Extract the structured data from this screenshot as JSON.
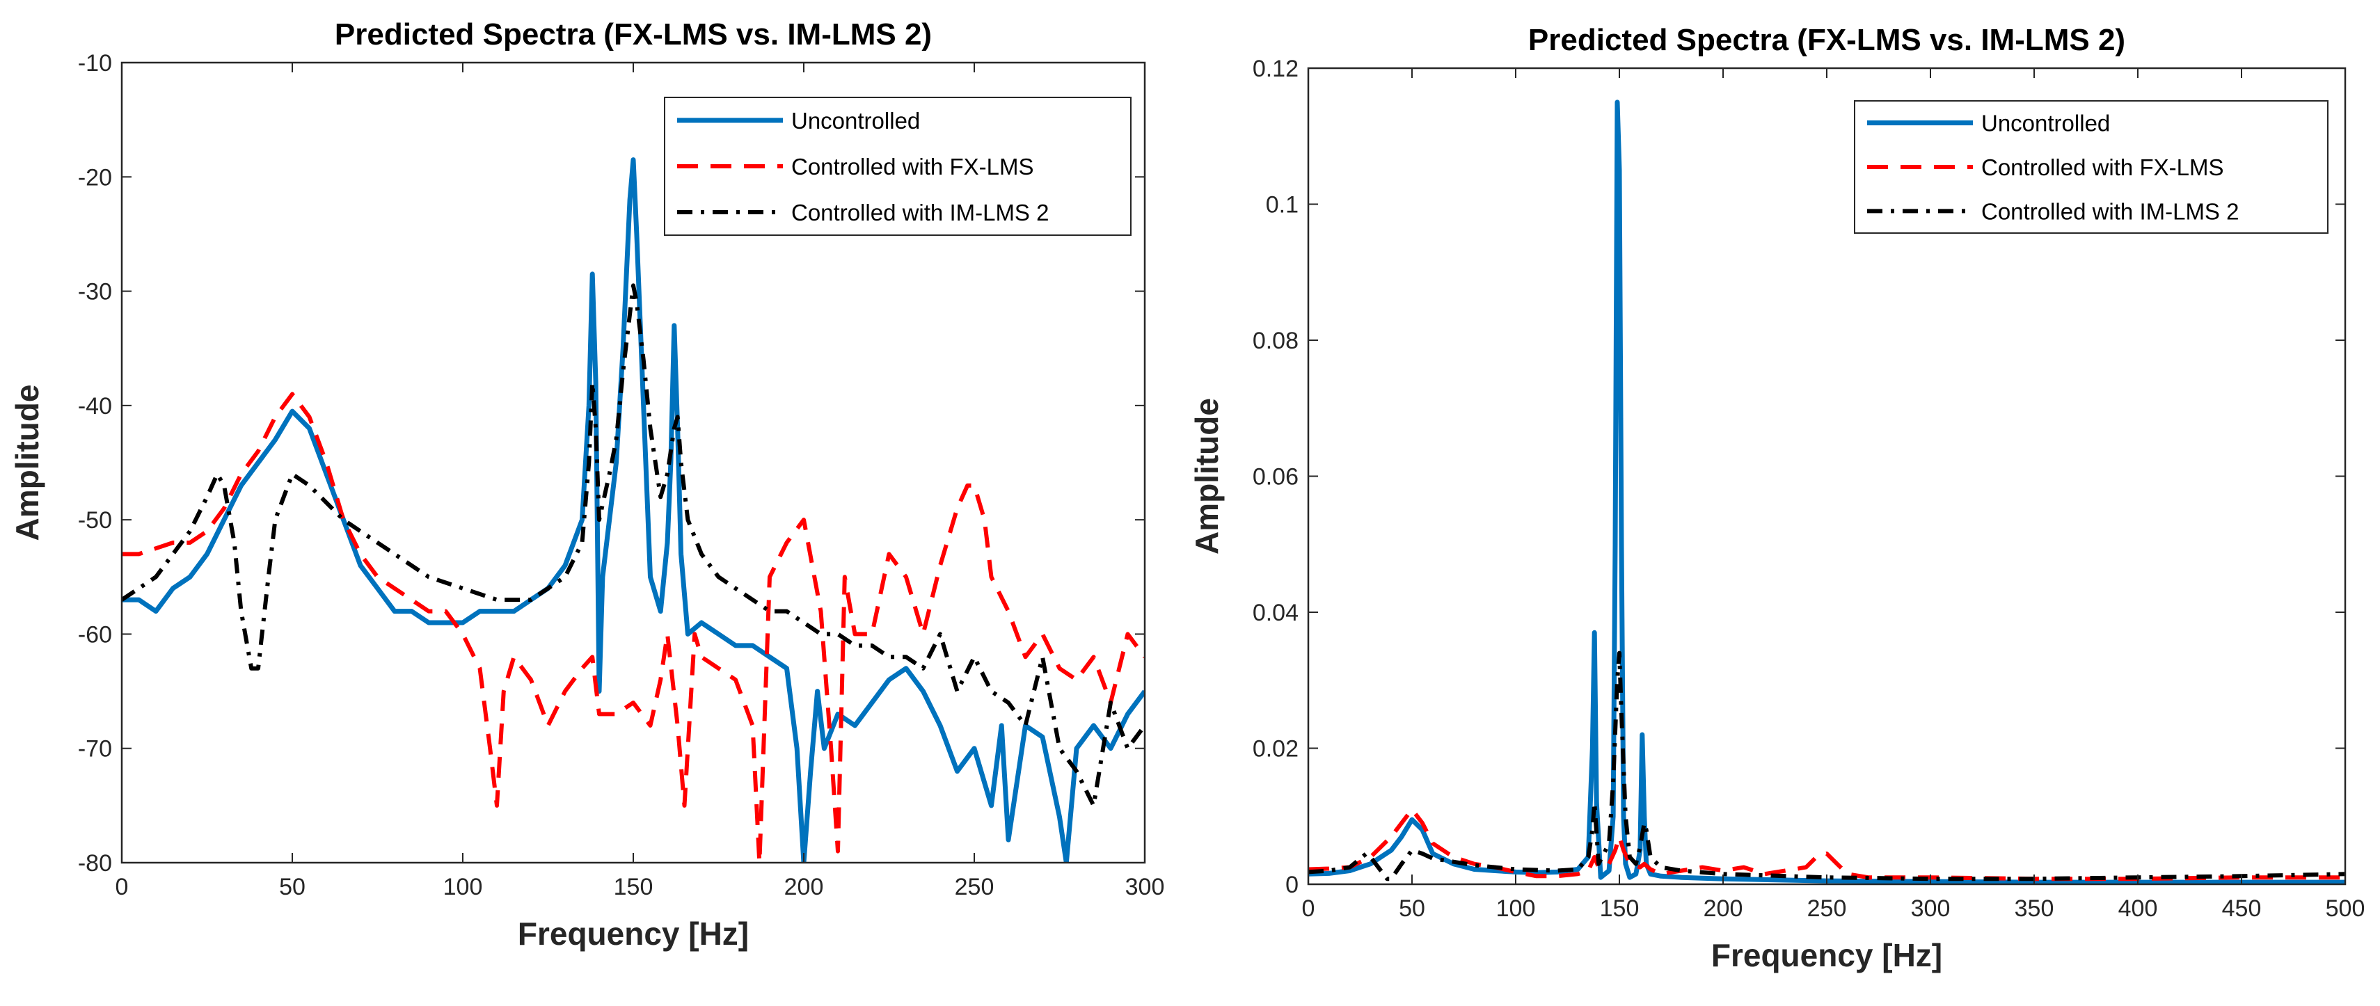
{
  "chart_data": [
    {
      "type": "line",
      "title": "Predicted Spectra (FX-LMS vs. IM-LMS 2)",
      "xlabel": "Frequency [Hz]",
      "ylabel": "Amplitude",
      "xlim": [
        0,
        300
      ],
      "ylim": [
        -80,
        -10
      ],
      "xticks": [
        "0",
        "50",
        "100",
        "150",
        "200",
        "250",
        "300"
      ],
      "yticks": [
        "-80",
        "-70",
        "-60",
        "-50",
        "-40",
        "-30",
        "-20",
        "-10"
      ],
      "legend": "top-right",
      "series": [
        {
          "name": "Uncontrolled",
          "style": "solid",
          "color": "#0072BD",
          "x": [
            0,
            5,
            10,
            15,
            20,
            25,
            30,
            35,
            40,
            45,
            50,
            55,
            60,
            65,
            70,
            75,
            80,
            85,
            90,
            95,
            100,
            105,
            110,
            115,
            120,
            125,
            130,
            135,
            137,
            138,
            139,
            140,
            141,
            143,
            145,
            147,
            149,
            150,
            151,
            153,
            155,
            158,
            160,
            161,
            162,
            163,
            164,
            166,
            170,
            175,
            180,
            185,
            190,
            195,
            198,
            200,
            202,
            204,
            206,
            210,
            215,
            220,
            225,
            230,
            235,
            240,
            245,
            250,
            255,
            258,
            260,
            265,
            270,
            275,
            277,
            280,
            285,
            290,
            295,
            300
          ],
          "values": [
            -57,
            -57,
            -58,
            -56,
            -55,
            -53,
            -50,
            -47,
            -45,
            -43,
            -40.5,
            -42,
            -46,
            -50,
            -54,
            -56,
            -58,
            -58,
            -59,
            -59,
            -59,
            -58,
            -58,
            -58,
            -57,
            -56,
            -54,
            -50,
            -40,
            -28.5,
            -38,
            -65,
            -55,
            -50,
            -45,
            -35,
            -22,
            -18.5,
            -25,
            -40,
            -55,
            -58,
            -52,
            -45,
            -33,
            -42,
            -53,
            -60,
            -59,
            -60,
            -61,
            -61,
            -62,
            -63,
            -70,
            -80,
            -72,
            -65,
            -70,
            -67,
            -68,
            -66,
            -64,
            -63,
            -65,
            -68,
            -72,
            -70,
            -75,
            -68,
            -78,
            -68,
            -69,
            -76,
            -80,
            -70,
            -68,
            -70,
            -67,
            -65
          ]
        },
        {
          "name": "Controlled with FX-LMS",
          "style": "dashed",
          "color": "#FF0000",
          "x": [
            0,
            5,
            10,
            15,
            20,
            25,
            30,
            35,
            40,
            45,
            50,
            55,
            60,
            65,
            70,
            75,
            80,
            85,
            90,
            95,
            100,
            105,
            108,
            110,
            112,
            115,
            120,
            125,
            130,
            135,
            138,
            140,
            145,
            150,
            155,
            158,
            160,
            163,
            165,
            168,
            170,
            175,
            180,
            185,
            187,
            190,
            195,
            200,
            205,
            208,
            210,
            212,
            215,
            220,
            225,
            230,
            235,
            240,
            245,
            248,
            250,
            253,
            255,
            260,
            265,
            270,
            275,
            280,
            285,
            290,
            295,
            300
          ],
          "values": [
            -53,
            -53,
            -52.5,
            -52,
            -52,
            -51,
            -49,
            -46,
            -44,
            -41,
            -39,
            -41,
            -45,
            -50,
            -53,
            -55,
            -56,
            -57,
            -58,
            -58,
            -60,
            -63,
            -70,
            -75,
            -65,
            -62,
            -64,
            -68,
            -65,
            -63,
            -62,
            -67,
            -67,
            -66,
            -68,
            -64,
            -60,
            -68,
            -75,
            -60,
            -62,
            -63,
            -64,
            -68,
            -80,
            -55,
            -52,
            -50,
            -58,
            -70,
            -79,
            -55,
            -60,
            -60,
            -53,
            -55,
            -60,
            -54,
            -49,
            -47,
            -47,
            -50,
            -55,
            -58,
            -62,
            -60,
            -63,
            -64,
            -62,
            -66,
            -60,
            -62
          ]
        },
        {
          "name": "Controlled with IM-LMS 2",
          "style": "dashdot",
          "color": "#000000",
          "x": [
            0,
            5,
            10,
            15,
            20,
            25,
            28,
            30,
            33,
            35,
            38,
            40,
            43,
            45,
            50,
            55,
            60,
            65,
            70,
            75,
            80,
            85,
            90,
            95,
            100,
            105,
            110,
            115,
            120,
            125,
            130,
            135,
            137,
            138,
            139,
            140,
            143,
            145,
            147,
            149,
            150,
            151,
            153,
            155,
            158,
            160,
            162,
            163,
            164,
            166,
            170,
            175,
            180,
            185,
            190,
            195,
            200,
            205,
            210,
            215,
            220,
            225,
            230,
            235,
            240,
            245,
            250,
            255,
            260,
            265,
            270,
            275,
            280,
            285,
            290,
            295,
            300
          ],
          "values": [
            -57,
            -56,
            -55,
            -53,
            -51,
            -48,
            -46,
            -47,
            -52,
            -58,
            -63,
            -63,
            -55,
            -50,
            -46,
            -47,
            -48.5,
            -50,
            -51,
            -52,
            -53,
            -54,
            -55,
            -55.5,
            -56,
            -56.5,
            -57,
            -57,
            -57,
            -56,
            -55,
            -52,
            -45,
            -38,
            -42,
            -50,
            -46,
            -43,
            -37,
            -32,
            -29.5,
            -31,
            -36,
            -42,
            -48,
            -46,
            -42,
            -41,
            -45,
            -50,
            -53,
            -55,
            -56,
            -57,
            -58,
            -58,
            -59,
            -60,
            -60,
            -61,
            -61,
            -62,
            -62,
            -63,
            -60,
            -65,
            -62,
            -65,
            -66,
            -68,
            -62,
            -70,
            -72,
            -75,
            -66,
            -70,
            -68
          ]
        }
      ]
    },
    {
      "type": "line",
      "title": "Predicted Spectra (FX-LMS vs. IM-LMS 2)",
      "xlabel": "Frequency [Hz]",
      "ylabel": "Amplitude",
      "xlim": [
        0,
        500
      ],
      "ylim": [
        0,
        0.12
      ],
      "xticks": [
        "0",
        "50",
        "100",
        "150",
        "200",
        "250",
        "300",
        "350",
        "400",
        "450",
        "500"
      ],
      "yticks": [
        "0",
        "0.02",
        "0.04",
        "0.06",
        "0.08",
        "0.1",
        "0.12"
      ],
      "legend": "top-right",
      "series": [
        {
          "name": "Uncontrolled",
          "style": "solid",
          "color": "#0072BD",
          "x": [
            0,
            10,
            20,
            30,
            40,
            45,
            50,
            55,
            60,
            70,
            80,
            90,
            100,
            110,
            120,
            130,
            135,
            137,
            138,
            139,
            141,
            145,
            147,
            148,
            149,
            150,
            151,
            152,
            153,
            155,
            158,
            160,
            161,
            162,
            163,
            165,
            170,
            180,
            200,
            250,
            300,
            350,
            400,
            450,
            500
          ],
          "values": [
            0.0015,
            0.0016,
            0.002,
            0.003,
            0.005,
            0.007,
            0.0095,
            0.008,
            0.0045,
            0.003,
            0.0022,
            0.002,
            0.0018,
            0.0017,
            0.0018,
            0.0022,
            0.004,
            0.02,
            0.037,
            0.012,
            0.001,
            0.002,
            0.01,
            0.05,
            0.115,
            0.105,
            0.05,
            0.01,
            0.003,
            0.001,
            0.0015,
            0.005,
            0.022,
            0.01,
            0.003,
            0.0015,
            0.0012,
            0.001,
            0.0008,
            0.0005,
            0.0004,
            0.0003,
            0.0003,
            0.0003,
            0.0003
          ]
        },
        {
          "name": "Controlled with FX-LMS",
          "style": "dashed",
          "color": "#FF0000",
          "x": [
            0,
            10,
            20,
            30,
            40,
            45,
            50,
            55,
            60,
            70,
            80,
            90,
            100,
            110,
            120,
            130,
            135,
            138,
            140,
            145,
            148,
            150,
            152,
            155,
            160,
            162,
            165,
            170,
            180,
            190,
            200,
            210,
            220,
            230,
            240,
            245,
            250,
            255,
            260,
            270,
            300,
            350,
            400,
            450,
            500
          ],
          "values": [
            0.0022,
            0.0023,
            0.0025,
            0.004,
            0.007,
            0.009,
            0.011,
            0.009,
            0.006,
            0.004,
            0.003,
            0.0025,
            0.0018,
            0.0012,
            0.0012,
            0.0015,
            0.002,
            0.004,
            0.0025,
            0.003,
            0.005,
            0.007,
            0.005,
            0.003,
            0.0025,
            0.003,
            0.0022,
            0.0015,
            0.002,
            0.0025,
            0.002,
            0.0025,
            0.0015,
            0.002,
            0.0025,
            0.004,
            0.0045,
            0.003,
            0.0015,
            0.001,
            0.001,
            0.0008,
            0.0008,
            0.001,
            0.001
          ]
        },
        {
          "name": "Controlled with IM-LMS 2",
          "style": "dashdot",
          "color": "#000000",
          "x": [
            0,
            10,
            20,
            28,
            30,
            35,
            38,
            40,
            45,
            50,
            55,
            60,
            70,
            80,
            90,
            100,
            110,
            120,
            130,
            135,
            137,
            138,
            140,
            145,
            147,
            149,
            150,
            151,
            153,
            155,
            158,
            160,
            162,
            163,
            165,
            170,
            180,
            200,
            250,
            300,
            350,
            400,
            450,
            500
          ],
          "values": [
            0.0018,
            0.002,
            0.0025,
            0.0045,
            0.004,
            0.002,
            0.0008,
            0.0008,
            0.003,
            0.005,
            0.0045,
            0.0038,
            0.0033,
            0.0028,
            0.0025,
            0.0022,
            0.0021,
            0.002,
            0.0022,
            0.004,
            0.008,
            0.012,
            0.003,
            0.006,
            0.015,
            0.03,
            0.034,
            0.025,
            0.01,
            0.004,
            0.003,
            0.0055,
            0.009,
            0.008,
            0.004,
            0.0025,
            0.002,
            0.0015,
            0.001,
            0.0008,
            0.0008,
            0.001,
            0.0012,
            0.0015
          ]
        }
      ]
    }
  ]
}
